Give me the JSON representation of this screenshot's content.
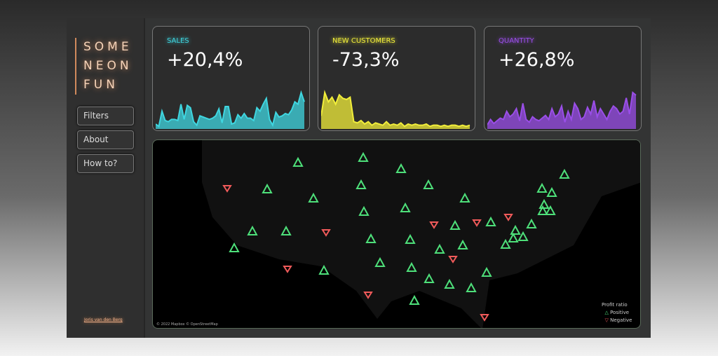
{
  "sidebar": {
    "logo": [
      "SOME",
      "NEON",
      "FUN"
    ],
    "nav": [
      "Filters",
      "About",
      "How to?"
    ],
    "author": "Joris van den Berg"
  },
  "kpis": [
    {
      "label": "SALES",
      "value": "+20,4%",
      "color": "#3fd6e0",
      "series": [
        3,
        1,
        14,
        6,
        5,
        7,
        7,
        6,
        20,
        7,
        19,
        17,
        5,
        2,
        10,
        9,
        8,
        7,
        8,
        10,
        16,
        4,
        18,
        18,
        3,
        4,
        11,
        8,
        12,
        8,
        8,
        6,
        17,
        14,
        20,
        25,
        7,
        2,
        13,
        9,
        10,
        12,
        11,
        15,
        22,
        20,
        30,
        22
      ]
    },
    {
      "label": "NEW CUSTOMERS",
      "value": "-73,3%",
      "color": "#f1ee3a",
      "series": [
        10,
        30,
        22,
        26,
        20,
        28,
        25,
        24,
        26,
        5,
        4,
        6,
        3,
        5,
        2,
        4,
        3,
        2,
        5,
        2,
        3,
        2,
        4,
        1,
        3,
        2,
        3,
        2,
        2,
        3,
        1,
        2,
        2,
        1,
        2,
        1,
        2,
        2,
        1,
        2,
        1,
        2
      ]
    },
    {
      "label": "QUANTITY",
      "value": "+26,8%",
      "color": "#9a4ee8",
      "series": [
        2,
        6,
        3,
        5,
        7,
        6,
        12,
        8,
        10,
        14,
        5,
        18,
        6,
        4,
        8,
        6,
        5,
        7,
        9,
        6,
        14,
        8,
        10,
        16,
        4,
        12,
        6,
        18,
        14,
        6,
        8,
        15,
        10,
        20,
        8,
        14,
        10,
        6,
        12,
        16,
        14,
        10,
        12,
        22,
        10,
        26,
        24
      ]
    }
  ],
  "map": {
    "credit": "© 2022 Mapbox © OpenStreetMap",
    "legend_title": "Profit ratio",
    "legend": [
      {
        "label": "Positive",
        "color": "#4ee07a"
      },
      {
        "label": "Negative",
        "color": "#f05a5a"
      }
    ],
    "marker_status": [
      "positive",
      "negative"
    ]
  }
}
